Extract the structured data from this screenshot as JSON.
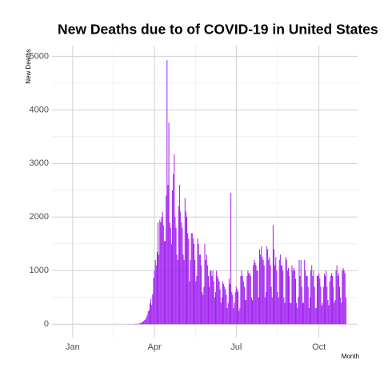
{
  "chart_data": {
    "type": "bar",
    "title": "New Deaths due to of COVID-19 in United States",
    "x_label": "Month",
    "y_label": "New Deaths",
    "color": "#a020f0",
    "grid": true,
    "xlim": [
      -23,
      317
    ],
    "ylim": [
      -250,
      5200
    ],
    "xticks": [
      {
        "value": 0,
        "label": "Jan"
      },
      {
        "value": 91,
        "label": "Apr"
      },
      {
        "value": 182,
        "label": "Jul"
      },
      {
        "value": 274,
        "label": "Oct"
      }
    ],
    "yticks": [
      0,
      1000,
      2000,
      3000,
      4000,
      5000
    ],
    "x": [
      60,
      61,
      62,
      63,
      64,
      65,
      66,
      67,
      68,
      69,
      70,
      71,
      72,
      73,
      74,
      75,
      76,
      77,
      78,
      79,
      80,
      81,
      82,
      83,
      84,
      85,
      86,
      87,
      88,
      89,
      90,
      91,
      92,
      93,
      94,
      95,
      96,
      97,
      98,
      99,
      100,
      101,
      102,
      103,
      104,
      105,
      106,
      107,
      108,
      109,
      110,
      111,
      112,
      113,
      114,
      115,
      116,
      117,
      118,
      119,
      120,
      121,
      122,
      123,
      124,
      125,
      126,
      127,
      128,
      129,
      130,
      131,
      132,
      133,
      134,
      135,
      136,
      137,
      138,
      139,
      140,
      141,
      142,
      143,
      144,
      145,
      146,
      147,
      148,
      149,
      150,
      151,
      152,
      153,
      154,
      155,
      156,
      157,
      158,
      159,
      160,
      161,
      162,
      163,
      164,
      165,
      166,
      167,
      168,
      169,
      170,
      171,
      172,
      173,
      174,
      175,
      176,
      177,
      178,
      179,
      180,
      181,
      182,
      183,
      184,
      185,
      186,
      187,
      188,
      189,
      190,
      191,
      192,
      193,
      194,
      195,
      196,
      197,
      198,
      199,
      200,
      201,
      202,
      203,
      204,
      205,
      206,
      207,
      208,
      209,
      210,
      211,
      212,
      213,
      214,
      215,
      216,
      217,
      218,
      219,
      220,
      221,
      222,
      223,
      224,
      225,
      226,
      227,
      228,
      229,
      230,
      231,
      232,
      233,
      234,
      235,
      236,
      237,
      238,
      239,
      240,
      241,
      242,
      243,
      244,
      245,
      246,
      247,
      248,
      249,
      250,
      251,
      252,
      253,
      254,
      255,
      256,
      257,
      258,
      259,
      260,
      261,
      262,
      263,
      264,
      265,
      266,
      267,
      268,
      269,
      270,
      271,
      272,
      273,
      274,
      275,
      276,
      277,
      278,
      279,
      280,
      281,
      282,
      283,
      284,
      285,
      286,
      287,
      288,
      289,
      290,
      291,
      292,
      293,
      294,
      295,
      296,
      297,
      298,
      299,
      300,
      301,
      302,
      303,
      304
    ],
    "values": [
      1,
      1,
      3,
      2,
      1,
      3,
      2,
      3,
      4,
      3,
      7,
      5,
      8,
      10,
      9,
      20,
      23,
      35,
      45,
      60,
      75,
      90,
      130,
      170,
      240,
      260,
      390,
      480,
      360,
      560,
      860,
      1000,
      1200,
      1100,
      1350,
      1900,
      1300,
      1950,
      1900,
      2000,
      2100,
      1850,
      1550,
      1550,
      2400,
      4928,
      2600,
      3760,
      1900,
      1800,
      1500,
      2500,
      2800,
      3170,
      2000,
      1800,
      1300,
      1200,
      2200,
      2600,
      2100,
      1900,
      1800,
      1300,
      1200,
      2350,
      2100,
      2000,
      1700,
      1600,
      800,
      1200,
      1700,
      1700,
      1600,
      1500,
      1200,
      800,
      900,
      1600,
      1500,
      1300,
      1300,
      1100,
      600,
      550,
      700,
      1500,
      1200,
      1300,
      1100,
      900,
      700,
      1000,
      1000,
      900,
      1000,
      800,
      500,
      600,
      1000,
      900,
      850,
      800,
      650,
      400,
      500,
      800,
      750,
      700,
      650,
      550,
      300,
      400,
      850,
      750,
      2450,
      600,
      550,
      300,
      400,
      600,
      700,
      650,
      600,
      250,
      300,
      900,
      1000,
      900,
      800,
      700,
      450,
      450,
      900,
      1000,
      950,
      950,
      900,
      500,
      450,
      1100,
      1200,
      1150,
      1100,
      1000,
      1000,
      500,
      1400,
      1300,
      1450,
      1250,
      1200,
      1100,
      500,
      600,
      1450,
      1400,
      1200,
      1250,
      1100,
      700,
      500,
      1850,
      1400,
      1100,
      1250,
      1000,
      600,
      500,
      1200,
      1300,
      1100,
      1100,
      1000,
      500,
      400,
      1250,
      1200,
      1000,
      1050,
      900,
      400,
      400,
      1100,
      1000,
      1050,
      1000,
      850,
      400,
      300,
      500,
      1200,
      900,
      1200,
      700,
      400,
      400,
      1200,
      1000,
      900,
      900,
      700,
      300,
      500,
      1000,
      1100,
      900,
      1000,
      700,
      300,
      300,
      900,
      900,
      950,
      850,
      700,
      350,
      400,
      700,
      950,
      900,
      1000,
      700,
      450,
      350,
      800,
      900,
      950,
      900,
      700,
      400,
      450,
      1000,
      1100,
      900,
      950,
      700,
      500,
      400,
      1000,
      1050,
      1000,
      950,
      500
    ]
  }
}
